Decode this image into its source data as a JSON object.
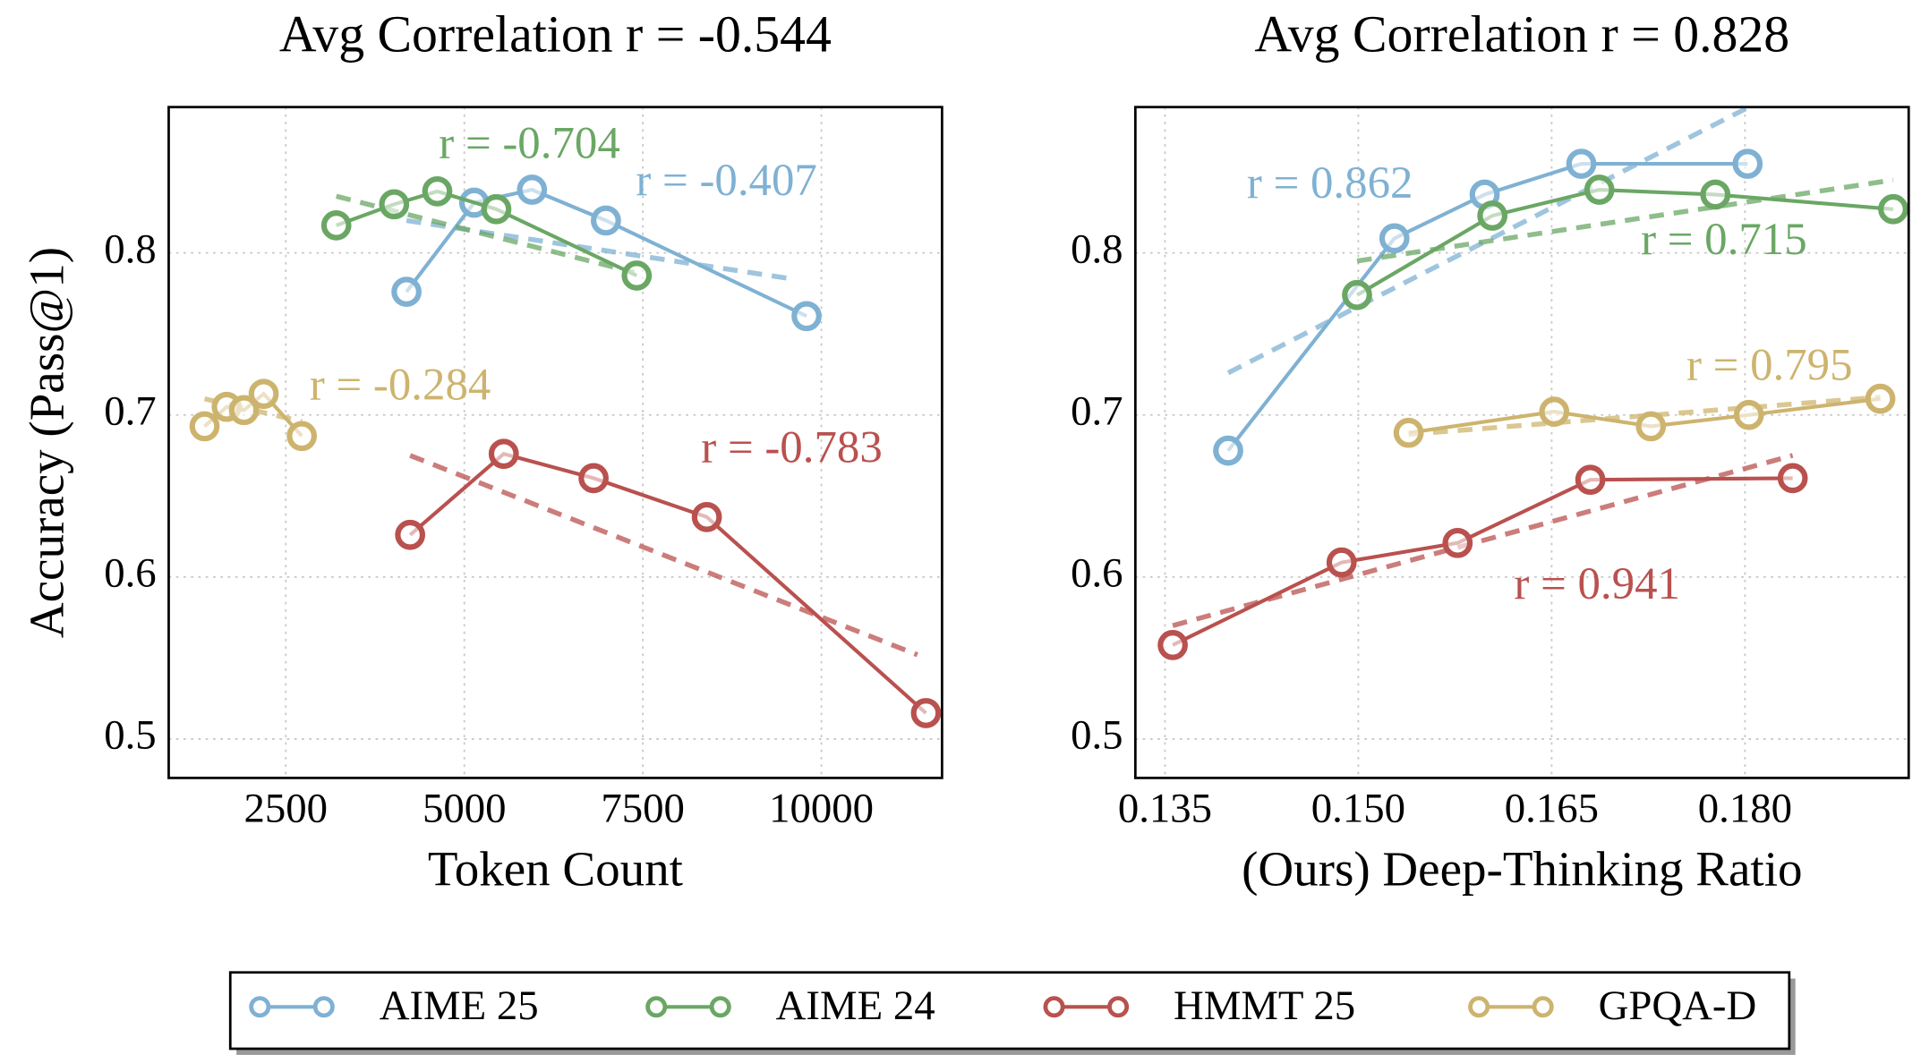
{
  "chart_data": [
    {
      "type": "line",
      "title": "Avg Correlation r = -0.544",
      "xlabel": "Token Count",
      "ylabel": "Accuracy (Pass@1)",
      "xlim": [
        860,
        11690
      ],
      "ylim": [
        0.476,
        0.89
      ],
      "xticks": [
        2500,
        5000,
        7500,
        10000
      ],
      "yticks": [
        0.5,
        0.6,
        0.7,
        0.8
      ],
      "grid": true,
      "series": [
        {
          "name": "AIME 25",
          "color": "#7fb1d3",
          "x": [
            4190,
            5138,
            5948,
            6983,
            9793
          ],
          "values": [
            0.776,
            0.831,
            0.839,
            0.82,
            0.761
          ],
          "trend_x": [
            4190,
            9586
          ],
          "trend_values": [
            0.82,
            0.784
          ],
          "annotation": "r = -0.407"
        },
        {
          "name": "AIME 24",
          "color": "#6aa764",
          "x": [
            3207,
            4017,
            4621,
            5448,
            7414
          ],
          "values": [
            0.817,
            0.83,
            0.838,
            0.827,
            0.786
          ],
          "trend_x": [
            3207,
            7379
          ],
          "trend_values": [
            0.835,
            0.788
          ],
          "annotation": "r = -0.704"
        },
        {
          "name": "HMMT 25",
          "color": "#b9514f",
          "x": [
            4241,
            5552,
            6810,
            8396,
            11465
          ],
          "values": [
            0.626,
            0.676,
            0.661,
            0.637,
            0.516
          ],
          "trend_x": [
            4241,
            11345
          ],
          "trend_values": [
            0.675,
            0.552
          ],
          "annotation": "r = -0.783"
        },
        {
          "name": "GPQA-D",
          "color": "#cdb46e",
          "x": [
            1362,
            1672,
            1914,
            2190,
            2724
          ],
          "values": [
            0.693,
            0.705,
            0.703,
            0.713,
            0.687
          ],
          "trend_x": [
            1362,
            2724
          ],
          "trend_values": [
            0.71,
            0.696
          ],
          "annotation": "r = -0.284"
        }
      ]
    },
    {
      "type": "line",
      "title": "Avg Correlation r = 0.828",
      "xlabel": "(Ours) Deep-Thinking Ratio",
      "xlim": [
        0.1327,
        0.1927
      ],
      "ylim": [
        0.476,
        0.89
      ],
      "xticks": [
        0.135,
        {
          "value": 0.15,
          "label": "0.150"
        },
        0.165,
        {
          "value": 0.18,
          "label": "0.180"
        }
      ],
      "yticks": [
        0.5,
        0.6,
        0.7,
        0.8
      ],
      "grid": true,
      "series": [
        {
          "color": "#7fb1d3",
          "x": [
            0.1399,
            0.1528,
            0.1598,
            0.1673,
            0.1802
          ],
          "values": [
            0.678,
            0.809,
            0.836,
            0.855,
            0.855
          ],
          "trend_x": [
            0.1399,
            0.1803
          ],
          "trend_values": [
            0.726,
            0.89
          ],
          "annotation": "r = 0.862"
        },
        {
          "color": "#6aa764",
          "x": [
            0.1499,
            0.1604,
            0.1687,
            0.1777,
            0.1915
          ],
          "values": [
            0.774,
            0.823,
            0.839,
            0.836,
            0.827
          ],
          "trend_x": [
            0.1499,
            0.1915
          ],
          "trend_values": [
            0.795,
            0.845
          ],
          "annotation": "r = 0.715"
        },
        {
          "color": "#b9514f",
          "x": [
            0.1356,
            0.1487,
            0.1577,
            0.168,
            0.1837
          ],
          "values": [
            0.558,
            0.609,
            0.621,
            0.66,
            0.661
          ],
          "trend_x": [
            0.1356,
            0.1837
          ],
          "trend_values": [
            0.57,
            0.675
          ],
          "annotation": "r = 0.941"
        },
        {
          "color": "#cdb46e",
          "x": [
            0.1539,
            0.1652,
            0.1727,
            0.1803,
            0.1905
          ],
          "values": [
            0.689,
            0.702,
            0.693,
            0.7,
            0.71
          ],
          "trend_x": [
            0.1539,
            0.1905
          ],
          "trend_values": [
            0.688,
            0.711
          ],
          "annotation": "r = 0.795"
        }
      ]
    }
  ]
}
